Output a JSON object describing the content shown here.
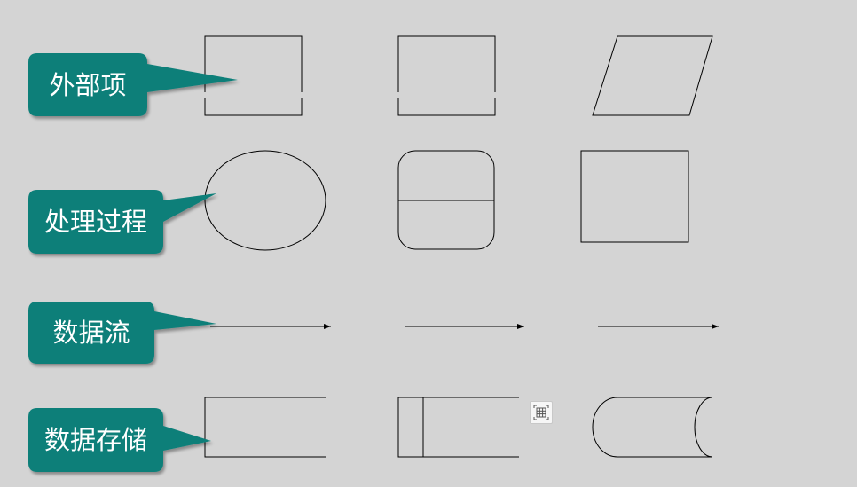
{
  "callouts": {
    "external": "外部项",
    "process": "处理过程",
    "dataflow": "数据流",
    "datastore": "数据存储"
  },
  "colors": {
    "callout_fill": "#0b7f79",
    "callout_text": "#ffffff",
    "stroke": "#000000"
  },
  "icons": {
    "table_button": "table-grid-icon"
  }
}
